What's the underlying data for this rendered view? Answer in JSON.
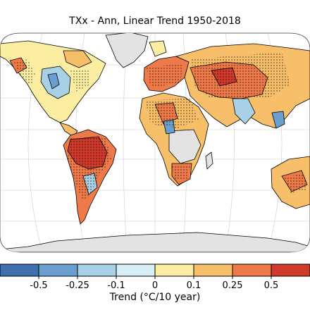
{
  "title": "TXx - Ann, Linear Trend 1950-2018",
  "colorbar": {
    "label": "Trend (°C/10 year)",
    "tick_labels": [
      "-0.5",
      "-0.25",
      "-0.1",
      "0",
      "0.1",
      "0.25",
      "0.5"
    ],
    "bins": [
      {
        "range": "< -0.5",
        "color": "#3f6faf"
      },
      {
        "range": "-0.5 to -0.25",
        "color": "#6aa0cf"
      },
      {
        "range": "-0.25 to -0.1",
        "color": "#a8d1e6"
      },
      {
        "range": "-0.1 to 0",
        "color": "#d6eef6"
      },
      {
        "range": "0 to 0.1",
        "color": "#fbeea2"
      },
      {
        "range": "0.1 to 0.25",
        "color": "#f8bf6b"
      },
      {
        "range": "0.25 to 0.5",
        "color": "#ee7a4a"
      },
      {
        "range": "> 0.5",
        "color": "#cf3a2c"
      }
    ]
  },
  "map": {
    "projection": "robinson",
    "missing_data_color": "#e3e3e3",
    "stippling": "significant trend",
    "regions": [
      {
        "name": "north-america-west",
        "color": "#fbeea2"
      },
      {
        "name": "north-america-east",
        "color": "#a8d1e6"
      },
      {
        "name": "south-america-north",
        "color": "#cf3a2c"
      },
      {
        "name": "south-america-south",
        "color": "#ee7a4a"
      },
      {
        "name": "europe",
        "color": "#ee7a4a"
      },
      {
        "name": "north-africa",
        "color": "#f8bf6b"
      },
      {
        "name": "central-africa",
        "color": "#e3e3e3"
      },
      {
        "name": "southern-africa",
        "color": "#ee7a4a"
      },
      {
        "name": "siberia",
        "color": "#f8bf6b"
      },
      {
        "name": "central-asia",
        "color": "#ee7a4a"
      },
      {
        "name": "south-asia",
        "color": "#a8d1e6"
      },
      {
        "name": "australia",
        "color": "#f8bf6b"
      },
      {
        "name": "antarctica",
        "color": "#e3e3e3"
      },
      {
        "name": "greenland",
        "color": "#e3e3e3"
      }
    ]
  }
}
